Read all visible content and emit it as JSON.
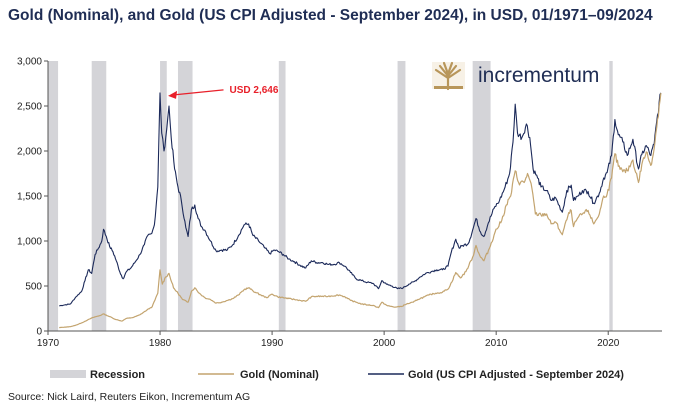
{
  "title": "Gold (Nominal), and Gold (US CPI Adjusted - September 2024), in USD, 01/1971–09/2024",
  "source": "Source: Nick Laird, Reuters Eikon, Incrementum AG",
  "logo_text": "incrementum",
  "colors": {
    "title": "#1f2d54",
    "recession": "#d4d4d8",
    "nominal": "#c3a46f",
    "cpi": "#1c2a5a",
    "annotation": "#e8202a",
    "logo_gold": "#b8965a",
    "logo_text": "#1f2d54"
  },
  "chart_data": {
    "type": "line",
    "xlim": [
      1970,
      2024.8
    ],
    "ylim": [
      0,
      3000
    ],
    "x_ticks": [
      1970,
      1980,
      1990,
      2000,
      2010,
      2020
    ],
    "x_tick_labels": [
      "1970",
      "1980",
      "1990",
      "2000",
      "2010",
      "2020"
    ],
    "y_ticks": [
      0,
      500,
      1000,
      1500,
      2000,
      2500,
      3000
    ],
    "y_tick_labels": [
      "0",
      "500",
      "1,000",
      "1,500",
      "2,000",
      "2,500",
      "3,000"
    ],
    "recessions": [
      [
        1970.0,
        1970.9
      ],
      [
        1973.9,
        1975.2
      ],
      [
        1980.0,
        1980.6
      ],
      [
        1981.6,
        1982.9
      ],
      [
        1990.6,
        1991.2
      ],
      [
        2001.2,
        2001.9
      ],
      [
        2007.9,
        2009.5
      ],
      [
        2020.1,
        2020.4
      ]
    ],
    "series": [
      {
        "name": "Gold (US CPI Adjusted - September 2024)",
        "key": "cpi",
        "points": [
          [
            1971.0,
            280
          ],
          [
            1971.5,
            290
          ],
          [
            1972.0,
            300
          ],
          [
            1972.5,
            380
          ],
          [
            1973.0,
            440
          ],
          [
            1973.3,
            560
          ],
          [
            1973.6,
            680
          ],
          [
            1973.9,
            640
          ],
          [
            1974.2,
            850
          ],
          [
            1974.5,
            920
          ],
          [
            1974.8,
            1000
          ],
          [
            1974.95,
            1130
          ],
          [
            1975.2,
            1050
          ],
          [
            1975.5,
            940
          ],
          [
            1975.8,
            880
          ],
          [
            1976.1,
            780
          ],
          [
            1976.4,
            660
          ],
          [
            1976.7,
            580
          ],
          [
            1977.0,
            660
          ],
          [
            1977.4,
            700
          ],
          [
            1977.8,
            770
          ],
          [
            1978.2,
            850
          ],
          [
            1978.6,
            960
          ],
          [
            1978.9,
            1060
          ],
          [
            1979.2,
            1080
          ],
          [
            1979.5,
            1180
          ],
          [
            1979.8,
            1600
          ],
          [
            1980.0,
            2646
          ],
          [
            1980.15,
            2200
          ],
          [
            1980.35,
            2000
          ],
          [
            1980.6,
            2250
          ],
          [
            1980.8,
            2500
          ],
          [
            1981.0,
            2150
          ],
          [
            1981.3,
            1800
          ],
          [
            1981.6,
            1600
          ],
          [
            1981.9,
            1450
          ],
          [
            1982.3,
            1150
          ],
          [
            1982.5,
            1050
          ],
          [
            1982.8,
            1350
          ],
          [
            1983.1,
            1400
          ],
          [
            1983.4,
            1250
          ],
          [
            1983.7,
            1160
          ],
          [
            1984.0,
            1120
          ],
          [
            1984.5,
            1000
          ],
          [
            1985.0,
            890
          ],
          [
            1985.5,
            900
          ],
          [
            1986.0,
            900
          ],
          [
            1986.5,
            960
          ],
          [
            1987.0,
            1060
          ],
          [
            1987.5,
            1180
          ],
          [
            1987.9,
            1190
          ],
          [
            1988.3,
            1060
          ],
          [
            1988.8,
            1000
          ],
          [
            1989.3,
            930
          ],
          [
            1989.8,
            860
          ],
          [
            1990.2,
            900
          ],
          [
            1990.6,
            880
          ],
          [
            1991.0,
            850
          ],
          [
            1991.5,
            800
          ],
          [
            1992.0,
            770
          ],
          [
            1992.5,
            730
          ],
          [
            1993.0,
            700
          ],
          [
            1993.5,
            780
          ],
          [
            1994.0,
            760
          ],
          [
            1994.5,
            760
          ],
          [
            1995.0,
            740
          ],
          [
            1995.5,
            740
          ],
          [
            1996.0,
            760
          ],
          [
            1996.5,
            720
          ],
          [
            1997.0,
            650
          ],
          [
            1997.5,
            580
          ],
          [
            1998.0,
            560
          ],
          [
            1998.5,
            540
          ],
          [
            1999.0,
            530
          ],
          [
            1999.5,
            470
          ],
          [
            1999.8,
            560
          ],
          [
            2000.2,
            520
          ],
          [
            2000.7,
            500
          ],
          [
            2001.2,
            470
          ],
          [
            2001.7,
            480
          ],
          [
            2002.2,
            520
          ],
          [
            2002.7,
            550
          ],
          [
            2003.2,
            600
          ],
          [
            2003.7,
            640
          ],
          [
            2004.2,
            660
          ],
          [
            2004.7,
            680
          ],
          [
            2005.2,
            680
          ],
          [
            2005.7,
            720
          ],
          [
            2006.0,
            880
          ],
          [
            2006.4,
            1020
          ],
          [
            2006.7,
            920
          ],
          [
            2007.0,
            950
          ],
          [
            2007.5,
            970
          ],
          [
            2007.9,
            1120
          ],
          [
            2008.2,
            1250
          ],
          [
            2008.6,
            1100
          ],
          [
            2008.9,
            1050
          ],
          [
            2009.3,
            1200
          ],
          [
            2009.8,
            1360
          ],
          [
            2010.3,
            1450
          ],
          [
            2010.8,
            1600
          ],
          [
            2011.2,
            1750
          ],
          [
            2011.5,
            2100
          ],
          [
            2011.7,
            2520
          ],
          [
            2011.9,
            2200
          ],
          [
            2012.3,
            2150
          ],
          [
            2012.7,
            2300
          ],
          [
            2013.0,
            2150
          ],
          [
            2013.3,
            1800
          ],
          [
            2013.7,
            1700
          ],
          [
            2014.0,
            1600
          ],
          [
            2014.5,
            1560
          ],
          [
            2014.9,
            1450
          ],
          [
            2015.3,
            1480
          ],
          [
            2015.9,
            1320
          ],
          [
            2016.3,
            1560
          ],
          [
            2016.7,
            1620
          ],
          [
            2016.9,
            1450
          ],
          [
            2017.3,
            1500
          ],
          [
            2017.7,
            1560
          ],
          [
            2018.2,
            1550
          ],
          [
            2018.7,
            1420
          ],
          [
            2019.2,
            1530
          ],
          [
            2019.6,
            1700
          ],
          [
            2019.9,
            1760
          ],
          [
            2020.3,
            1950
          ],
          [
            2020.6,
            2350
          ],
          [
            2020.9,
            2180
          ],
          [
            2021.3,
            2100
          ],
          [
            2021.7,
            1950
          ],
          [
            2022.2,
            2130
          ],
          [
            2022.7,
            1800
          ],
          [
            2023.0,
            1960
          ],
          [
            2023.4,
            2060
          ],
          [
            2023.8,
            1950
          ],
          [
            2024.1,
            2080
          ],
          [
            2024.4,
            2400
          ],
          [
            2024.7,
            2646
          ]
        ]
      },
      {
        "name": "Gold (Nominal)",
        "key": "nominal",
        "points": [
          [
            1971.0,
            38
          ],
          [
            1972.0,
            48
          ],
          [
            1972.5,
            65
          ],
          [
            1973.0,
            90
          ],
          [
            1973.5,
            120
          ],
          [
            1974.0,
            150
          ],
          [
            1974.6,
            170
          ],
          [
            1974.95,
            190
          ],
          [
            1975.5,
            160
          ],
          [
            1976.0,
            130
          ],
          [
            1976.6,
            110
          ],
          [
            1977.0,
            140
          ],
          [
            1977.6,
            150
          ],
          [
            1978.2,
            180
          ],
          [
            1978.8,
            230
          ],
          [
            1979.3,
            270
          ],
          [
            1979.8,
            420
          ],
          [
            1980.0,
            680
          ],
          [
            1980.2,
            520
          ],
          [
            1980.5,
            600
          ],
          [
            1980.8,
            640
          ],
          [
            1981.2,
            480
          ],
          [
            1981.6,
            420
          ],
          [
            1982.0,
            350
          ],
          [
            1982.5,
            320
          ],
          [
            1982.8,
            440
          ],
          [
            1983.1,
            480
          ],
          [
            1983.5,
            420
          ],
          [
            1984.0,
            370
          ],
          [
            1984.5,
            350
          ],
          [
            1985.0,
            310
          ],
          [
            1985.5,
            320
          ],
          [
            1986.0,
            340
          ],
          [
            1986.5,
            360
          ],
          [
            1987.0,
            400
          ],
          [
            1987.5,
            460
          ],
          [
            1987.9,
            480
          ],
          [
            1988.5,
            430
          ],
          [
            1989.0,
            400
          ],
          [
            1989.5,
            370
          ],
          [
            1990.0,
            410
          ],
          [
            1990.5,
            380
          ],
          [
            1991.0,
            370
          ],
          [
            1991.5,
            360
          ],
          [
            1992.0,
            350
          ],
          [
            1992.5,
            340
          ],
          [
            1993.0,
            330
          ],
          [
            1993.5,
            380
          ],
          [
            1994.0,
            385
          ],
          [
            1995.0,
            385
          ],
          [
            1996.0,
            400
          ],
          [
            1996.5,
            380
          ],
          [
            1997.0,
            340
          ],
          [
            1997.5,
            320
          ],
          [
            1998.0,
            300
          ],
          [
            1998.5,
            290
          ],
          [
            1999.0,
            285
          ],
          [
            1999.5,
            260
          ],
          [
            1999.8,
            320
          ],
          [
            2000.3,
            280
          ],
          [
            2001.0,
            265
          ],
          [
            2001.6,
            275
          ],
          [
            2002.0,
            300
          ],
          [
            2002.6,
            320
          ],
          [
            2003.0,
            350
          ],
          [
            2003.6,
            380
          ],
          [
            2004.0,
            400
          ],
          [
            2004.6,
            420
          ],
          [
            2005.2,
            430
          ],
          [
            2005.8,
            480
          ],
          [
            2006.4,
            650
          ],
          [
            2006.8,
            590
          ],
          [
            2007.3,
            660
          ],
          [
            2007.9,
            820
          ],
          [
            2008.2,
            950
          ],
          [
            2008.6,
            820
          ],
          [
            2008.9,
            780
          ],
          [
            2009.4,
            920
          ],
          [
            2009.9,
            1100
          ],
          [
            2010.5,
            1230
          ],
          [
            2010.9,
            1400
          ],
          [
            2011.3,
            1500
          ],
          [
            2011.7,
            1780
          ],
          [
            2012.0,
            1650
          ],
          [
            2012.5,
            1650
          ],
          [
            2012.8,
            1750
          ],
          [
            2013.2,
            1580
          ],
          [
            2013.5,
            1300
          ],
          [
            2014.0,
            1290
          ],
          [
            2014.5,
            1300
          ],
          [
            2014.9,
            1190
          ],
          [
            2015.3,
            1210
          ],
          [
            2015.9,
            1070
          ],
          [
            2016.4,
            1280
          ],
          [
            2016.7,
            1340
          ],
          [
            2016.9,
            1160
          ],
          [
            2017.3,
            1260
          ],
          [
            2017.7,
            1300
          ],
          [
            2018.2,
            1340
          ],
          [
            2018.7,
            1190
          ],
          [
            2019.2,
            1300
          ],
          [
            2019.6,
            1500
          ],
          [
            2019.9,
            1520
          ],
          [
            2020.3,
            1700
          ],
          [
            2020.6,
            1970
          ],
          [
            2020.9,
            1830
          ],
          [
            2021.3,
            1770
          ],
          [
            2021.7,
            1780
          ],
          [
            2022.2,
            1900
          ],
          [
            2022.7,
            1650
          ],
          [
            2023.0,
            1850
          ],
          [
            2023.4,
            1990
          ],
          [
            2023.8,
            1840
          ],
          [
            2024.1,
            2030
          ],
          [
            2024.4,
            2350
          ],
          [
            2024.7,
            2646
          ]
        ]
      }
    ],
    "annotations": [
      {
        "text": "USD 2,646",
        "target": [
          1980.0,
          2646
        ],
        "label_at": [
          1986.2,
          2646
        ]
      }
    ],
    "legend": {
      "position": "bottom",
      "items": [
        {
          "label": "Recession",
          "kind": "band",
          "key": "recession"
        },
        {
          "label": "Gold (Nominal)",
          "kind": "line",
          "key": "nominal"
        },
        {
          "label": "Gold (US CPI Adjusted - September 2024)",
          "kind": "line",
          "key": "cpi"
        }
      ]
    }
  }
}
